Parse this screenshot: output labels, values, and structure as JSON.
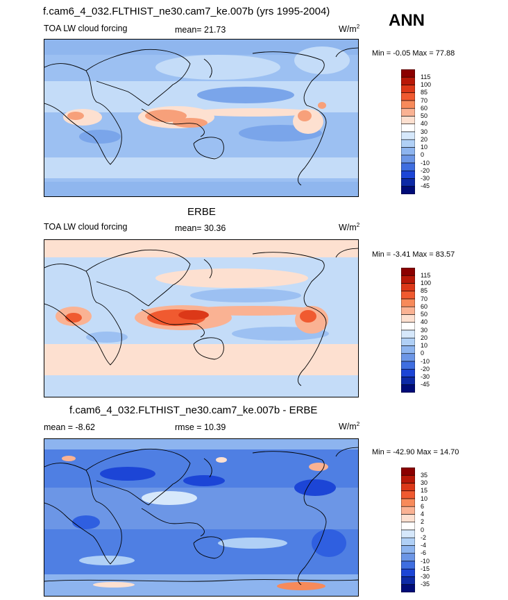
{
  "header": {
    "season": "ANN"
  },
  "panels": [
    {
      "title": "f.cam6_4_032.FLTHIST_ne30.cam7_ke.007b (yrs 1995-2004)",
      "left_label": "TOA LW cloud forcing",
      "center_label": "mean=  21.73",
      "units": "W/m",
      "units_sup": "2",
      "minmax": "Min =  -0.05 Max =  77.88",
      "colorbar": {
        "labels": [
          "115",
          "100",
          "85",
          "70",
          "60",
          "50",
          "40",
          "30",
          "20",
          "10",
          "0",
          "-10",
          "-20",
          "-30",
          "-45"
        ],
        "colors": [
          "#8b0000",
          "#b81808",
          "#dc3818",
          "#f05a30",
          "#f78a5a",
          "#fab293",
          "#fde0d0",
          "#ffffff",
          "#d6e8fb",
          "#b0d0f6",
          "#8db4ef",
          "#6c96e6",
          "#3f6ee0",
          "#1c45d6",
          "#0d2aa6",
          "#000c78"
        ]
      }
    },
    {
      "title": "ERBE",
      "left_label": "TOA LW cloud forcing",
      "center_label": "mean=  30.36",
      "units": "W/m",
      "units_sup": "2",
      "minmax": "Min =  -3.41 Max =  83.57",
      "colorbar": {
        "labels": [
          "115",
          "100",
          "85",
          "70",
          "60",
          "50",
          "40",
          "30",
          "20",
          "10",
          "0",
          "-10",
          "-20",
          "-30",
          "-45"
        ],
        "colors": [
          "#8b0000",
          "#b81808",
          "#dc3818",
          "#f05a30",
          "#f78a5a",
          "#fab293",
          "#fde0d0",
          "#ffffff",
          "#d6e8fb",
          "#b0d0f6",
          "#8db4ef",
          "#6c96e6",
          "#3f6ee0",
          "#1c45d6",
          "#0d2aa6",
          "#000c78"
        ]
      }
    },
    {
      "title": "f.cam6_4_032.FLTHIST_ne30.cam7_ke.007b - ERBE",
      "left_label": "mean =  -8.62",
      "center_label": "rmse =  10.39",
      "units": "W/m",
      "units_sup": "2",
      "minmax": "Min = -42.90 Max =  14.70",
      "colorbar": {
        "labels": [
          "35",
          "30",
          "15",
          "10",
          "6",
          "4",
          "2",
          "0",
          "-2",
          "-4",
          "-6",
          "-10",
          "-15",
          "-30",
          "-35"
        ],
        "colors": [
          "#8b0000",
          "#b81808",
          "#dc3818",
          "#f05a30",
          "#f78a5a",
          "#fab293",
          "#fde0d0",
          "#ffffff",
          "#d6e8fb",
          "#b0d0f6",
          "#8db4ef",
          "#6c96e6",
          "#3f6ee0",
          "#1c45d6",
          "#0d2aa6",
          "#000c78"
        ]
      }
    }
  ]
}
